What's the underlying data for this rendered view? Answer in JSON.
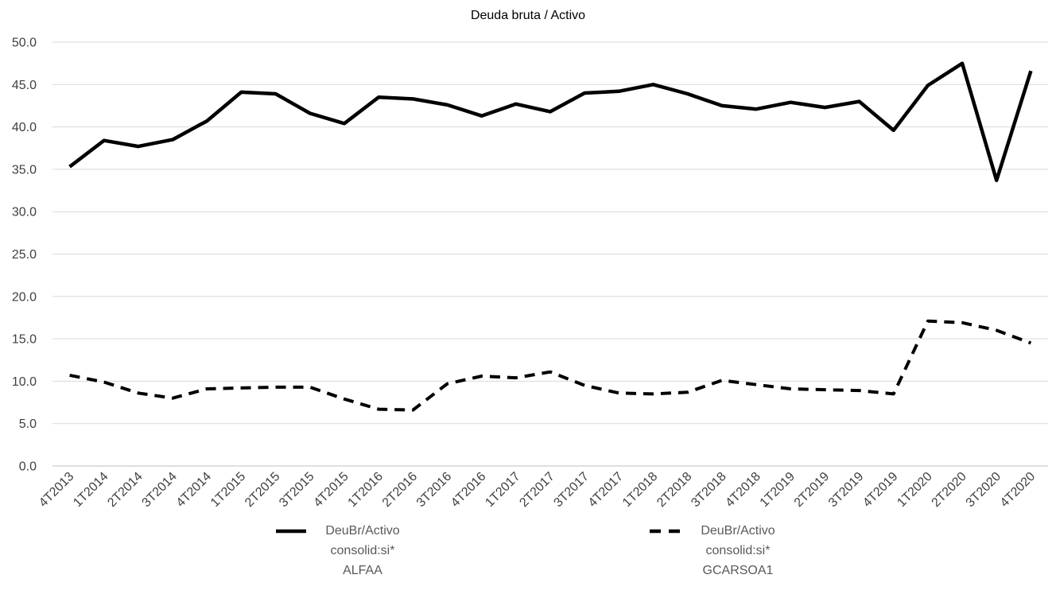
{
  "chart_data": {
    "type": "line",
    "title": "Deuda bruta / Activo",
    "xlabel": "",
    "ylabel": "",
    "ylim": [
      0,
      50
    ],
    "yticks": [
      0,
      5,
      10,
      15,
      20,
      25,
      30,
      35,
      40,
      45,
      50
    ],
    "ytick_labels": [
      "0.0",
      "5.0",
      "10.0",
      "15.0",
      "20.0",
      "25.0",
      "30.0",
      "35.0",
      "40.0",
      "45.0",
      "50.0"
    ],
    "grid": true,
    "legend_position": "bottom",
    "categories": [
      "4T2013",
      "1T2014",
      "2T2014",
      "3T2014",
      "4T2014",
      "1T2015",
      "2T2015",
      "3T2015",
      "4T2015",
      "1T2016",
      "2T2016",
      "3T2016",
      "4T2016",
      "1T2017",
      "2T2017",
      "3T2017",
      "4T2017",
      "1T2018",
      "2T2018",
      "3T2018",
      "4T2018",
      "1T2019",
      "2T2019",
      "3T2019",
      "4T2019",
      "1T2020",
      "2T2020",
      "3T2020",
      "4T2020"
    ],
    "series": [
      {
        "name": "DeuBr/Activo consolid:si* ALFAA",
        "legend_lines": [
          "DeuBr/Activo",
          "consolid:si*",
          "ALFAA"
        ],
        "dash": false,
        "values": [
          35.3,
          38.4,
          37.7,
          38.5,
          40.7,
          44.1,
          43.9,
          41.6,
          40.4,
          43.5,
          43.3,
          42.6,
          41.3,
          42.7,
          41.8,
          44.0,
          44.2,
          45.0,
          43.9,
          42.5,
          42.1,
          42.9,
          42.3,
          43.0,
          39.6,
          44.9,
          47.5,
          33.7,
          46.6
        ]
      },
      {
        "name": "DeuBr/Activo consolid:si* GCARSOA1",
        "legend_lines": [
          "DeuBr/Activo",
          "consolid:si*",
          "GCARSOA1"
        ],
        "dash": true,
        "values": [
          10.7,
          9.9,
          8.6,
          8.0,
          9.1,
          9.2,
          9.3,
          9.3,
          7.9,
          6.7,
          6.6,
          9.7,
          10.6,
          10.4,
          11.1,
          9.5,
          8.6,
          8.5,
          8.7,
          10.1,
          9.6,
          9.1,
          9.0,
          8.9,
          8.5,
          17.1,
          16.9,
          16.0,
          14.5
        ]
      }
    ]
  },
  "colors": {
    "line": "#000000",
    "grid": "#d9d9d9",
    "axis": "#bfbfbf",
    "tick_label": "#404040",
    "legend_text": "#595959",
    "background": "#ffffff"
  }
}
